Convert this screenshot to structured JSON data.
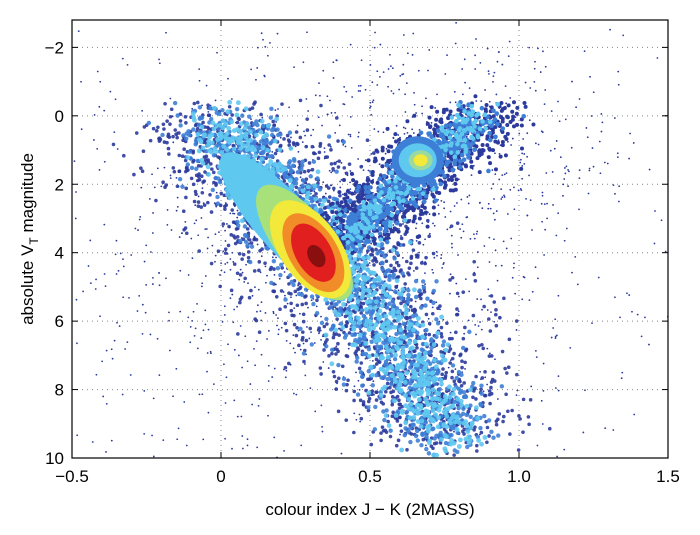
{
  "chart_data": {
    "type": "heatmap",
    "title": "",
    "xlabel": "colour index J − K (2MASS)",
    "ylabel_parts": {
      "prefix": "absolute V",
      "sub": "T",
      "suffix": " magnitude"
    },
    "xlim": [
      -0.5,
      1.5
    ],
    "ylim": [
      10,
      -2.8
    ],
    "y_inverted": true,
    "grid": true,
    "xticks": [
      -0.5,
      0,
      0.5,
      1.0,
      1.5
    ],
    "xtick_labels": [
      "−0.5",
      "0",
      "0.5",
      "1.0",
      "1.5"
    ],
    "yticks": [
      -2,
      0,
      2,
      4,
      6,
      8,
      10
    ],
    "ytick_labels": [
      "−2",
      "0",
      "2",
      "4",
      "6",
      "8",
      "10"
    ],
    "colormap": [
      "#2b3a9c",
      "#3d7fd6",
      "#5ec8ef",
      "#f2e93a",
      "#f28c28",
      "#e21f1f",
      "#8a0f0f"
    ],
    "density_features": [
      {
        "feature": "main sequence",
        "x_range": [
          -0.1,
          0.85
        ],
        "y_range": [
          0.0,
          9.8
        ],
        "peak": [
          0.3,
          4.0
        ],
        "density": 1.0
      },
      {
        "feature": "red clump",
        "x_range": [
          0.55,
          0.75
        ],
        "y_range": [
          0.8,
          1.8
        ],
        "peak": [
          0.65,
          1.3
        ],
        "density": 0.45
      },
      {
        "feature": "giant branch",
        "x_range": [
          0.45,
          1.1
        ],
        "y_range": [
          -0.5,
          3.5
        ],
        "peak": [
          0.6,
          2.5
        ],
        "density": 0.3
      }
    ]
  }
}
